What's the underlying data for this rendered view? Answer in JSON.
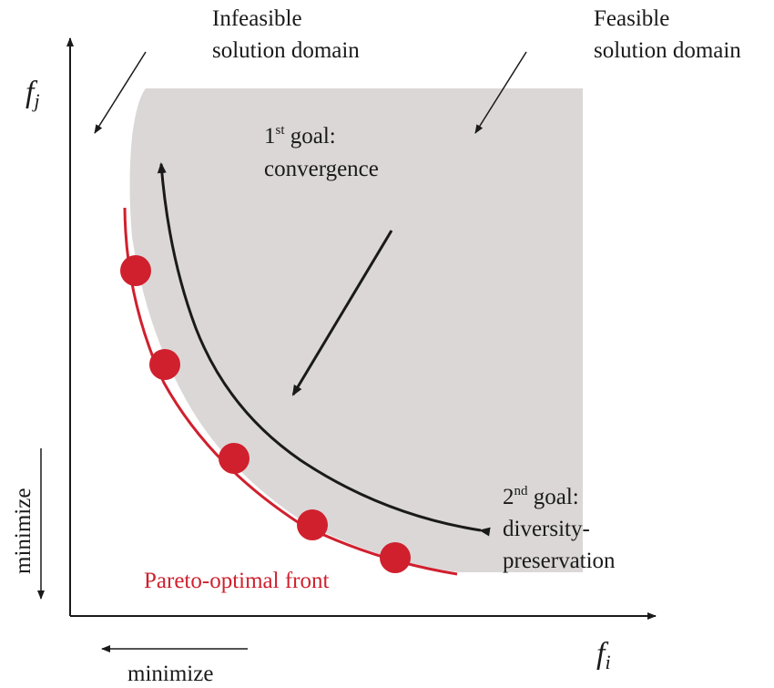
{
  "colors": {
    "feasible_fill": "#dcd7d7",
    "front_color": "#d0202e",
    "ink": "#1a1a1a"
  },
  "labels": {
    "infeasible_line1": "Infeasible",
    "infeasible_line2": "solution domain",
    "feasible_line1": "Feasible",
    "feasible_line2": "solution domain",
    "goal1_num": "1",
    "goal1_sup": "st",
    "goal1_word": " goal:",
    "goal1_line2": "convergence",
    "goal2_num": "2",
    "goal2_sup": "nd",
    "goal2_word": " goal:",
    "goal2_line2": "diversity-",
    "goal2_line3": "preservation",
    "front": "Pareto-optimal  front",
    "y_axis_var": "f",
    "y_axis_sub": "j",
    "x_axis_var": "f",
    "x_axis_sub": "i",
    "y_minimize": "minimize",
    "x_minimize": "minimize"
  },
  "pareto_points_count": 5
}
